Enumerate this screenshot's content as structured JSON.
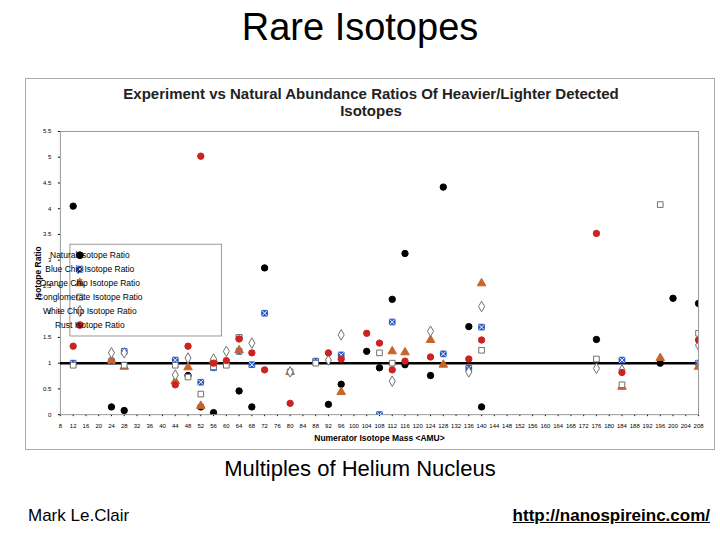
{
  "slide": {
    "title": "Rare Isotopes",
    "caption": "Multiples of Helium Nucleus",
    "author": "Mark Le.Clair",
    "url": "http://nanospireinc.com/"
  },
  "chart_data": {
    "type": "scatter",
    "title": "Experiment vs Natural Abundance Ratios Of Heavier/Lighter Detected Isotopes",
    "x_label": "Numerator Isotope Mass <AMU>",
    "y_label": "Isotope Ratio",
    "xlim": [
      8,
      208
    ],
    "xticks": [
      8,
      12,
      16,
      20,
      24,
      28,
      32,
      36,
      40,
      44,
      48,
      52,
      56,
      60,
      64,
      68,
      72,
      76,
      80,
      84,
      88,
      92,
      96,
      100,
      104,
      108,
      112,
      116,
      120,
      124,
      128,
      132,
      136,
      140,
      144,
      148,
      152,
      156,
      160,
      164,
      168,
      172,
      176,
      180,
      184,
      188,
      192,
      196,
      200,
      204,
      208
    ],
    "ylim": [
      0,
      5.5
    ],
    "yticks": [
      0,
      0.5,
      1,
      1.5,
      2,
      2.5,
      3,
      3.5,
      4,
      4.5,
      5,
      5.5
    ],
    "reference_line": 1,
    "grid": false,
    "legend": "upper left",
    "series": [
      {
        "name": "Natural Isotope Ratio",
        "color": "#000000",
        "marker": "circle",
        "x": [
          12,
          24,
          28,
          48,
          52,
          56,
          64,
          68,
          72,
          92,
          96,
          104,
          108,
          112,
          116,
          116,
          124,
          128,
          136,
          140,
          176,
          196,
          200,
          208
        ],
        "values": [
          4.05,
          0.15,
          0.08,
          0.76,
          0.15,
          0.04,
          0.46,
          0.15,
          2.85,
          0.2,
          0.59,
          1.23,
          0.91,
          2.24,
          3.13,
          0.97,
          0.76,
          4.42,
          1.71,
          0.15,
          1.46,
          1.0,
          2.26,
          2.16
        ]
      },
      {
        "name": "Blue Chip Isotope Ratio",
        "color": "#2457c5",
        "marker": "square_x",
        "x": [
          12,
          24,
          28,
          44,
          52,
          56,
          64,
          64,
          68,
          72,
          88,
          96,
          108,
          112,
          128,
          136,
          140,
          184,
          208
        ],
        "values": [
          1.0,
          1.04,
          1.23,
          1.06,
          0.63,
          0.91,
          1.5,
          1.23,
          0.97,
          1.97,
          1.04,
          1.16,
          0.0,
          1.8,
          1.18,
          0.9,
          1.7,
          1.06,
          1.0
        ]
      },
      {
        "name": "Orange Chip Isotope Ratio",
        "color": "#c8642a",
        "marker": "triangle",
        "x": [
          24,
          28,
          44,
          48,
          52,
          56,
          64,
          80,
          96,
          112,
          116,
          124,
          128,
          140,
          184,
          196,
          208
        ],
        "values": [
          1.06,
          0.93,
          0.65,
          0.92,
          0.17,
          1.06,
          1.25,
          0.83,
          0.44,
          1.23,
          1.21,
          1.45,
          0.97,
          2.55,
          0.54,
          1.1,
          0.93
        ]
      },
      {
        "name": "Conglomerate Isotope Ratio",
        "color": "#707070",
        "marker": "square_open",
        "x": [
          12,
          28,
          44,
          48,
          52,
          56,
          60,
          64,
          80,
          88,
          108,
          112,
          140,
          176,
          184,
          196,
          208
        ],
        "values": [
          0.96,
          0.96,
          0.96,
          0.73,
          0.4,
          0.93,
          0.96,
          1.5,
          0.83,
          1.0,
          1.2,
          1.0,
          1.25,
          1.08,
          0.58,
          4.08,
          1.58
        ]
      },
      {
        "name": "White Chip Isotope Ratio",
        "color": "#707070",
        "marker": "diamond_open",
        "x": [
          24,
          28,
          44,
          48,
          56,
          60,
          68,
          80,
          92,
          96,
          112,
          124,
          136,
          140,
          176,
          184,
          208
        ],
        "values": [
          1.2,
          1.2,
          0.77,
          1.1,
          1.08,
          1.23,
          1.39,
          0.83,
          1.06,
          1.55,
          0.65,
          1.62,
          0.83,
          2.1,
          0.9,
          0.87,
          1.35
        ]
      },
      {
        "name": "Rust Isotope Ratio",
        "color": "#cc2222",
        "marker": "circle",
        "x": [
          12,
          44,
          48,
          52,
          56,
          60,
          64,
          68,
          72,
          80,
          92,
          96,
          104,
          108,
          112,
          116,
          124,
          136,
          140,
          176,
          184,
          208
        ],
        "values": [
          1.33,
          0.58,
          1.33,
          5.02,
          1.0,
          1.05,
          1.47,
          1.2,
          0.87,
          0.22,
          1.2,
          1.08,
          1.58,
          1.39,
          0.87,
          1.04,
          1.12,
          1.08,
          1.45,
          3.52,
          0.82,
          1.45
        ]
      }
    ]
  }
}
